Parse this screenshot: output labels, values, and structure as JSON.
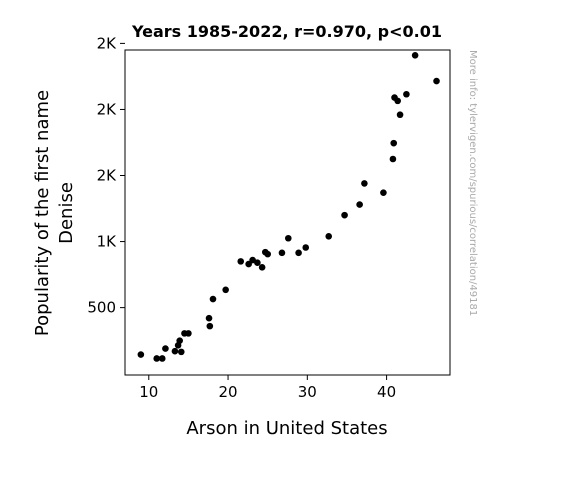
{
  "chart_data": {
    "type": "scatter",
    "title": "Years 1985-2022, r=0.970, p<0.01",
    "xlabel": "Arson in United States",
    "ylabel_lines": [
      "Popularity of the first name",
      "Denise"
    ],
    "side_note": "More info: tylervigen.com/spurious/correlation/49181",
    "xlim": [
      7,
      48
    ],
    "ylim": [
      -10,
      2450
    ],
    "x_ticks": [
      {
        "value": 10,
        "label": "10"
      },
      {
        "value": 20,
        "label": "20"
      },
      {
        "value": 30,
        "label": "30"
      },
      {
        "value": 40,
        "label": "40"
      }
    ],
    "y_ticks": [
      {
        "value": 500,
        "label": "500"
      },
      {
        "value": 1000,
        "label": "1K"
      },
      {
        "value": 1500,
        "label": "2K"
      },
      {
        "value": 2000,
        "label": "2K"
      },
      {
        "value": 2500,
        "label": "2K"
      }
    ],
    "points": [
      {
        "x": 9.0,
        "y": 145
      },
      {
        "x": 11.0,
        "y": 115
      },
      {
        "x": 11.7,
        "y": 115
      },
      {
        "x": 12.1,
        "y": 190
      },
      {
        "x": 13.3,
        "y": 170
      },
      {
        "x": 13.7,
        "y": 215
      },
      {
        "x": 13.9,
        "y": 250
      },
      {
        "x": 14.1,
        "y": 165
      },
      {
        "x": 14.5,
        "y": 305
      },
      {
        "x": 15.0,
        "y": 305
      },
      {
        "x": 17.6,
        "y": 420
      },
      {
        "x": 17.7,
        "y": 360
      },
      {
        "x": 18.1,
        "y": 565
      },
      {
        "x": 19.7,
        "y": 635
      },
      {
        "x": 21.6,
        "y": 850
      },
      {
        "x": 22.6,
        "y": 830
      },
      {
        "x": 23.1,
        "y": 860
      },
      {
        "x": 23.7,
        "y": 840
      },
      {
        "x": 24.3,
        "y": 805
      },
      {
        "x": 24.7,
        "y": 920
      },
      {
        "x": 25.0,
        "y": 905
      },
      {
        "x": 26.8,
        "y": 915
      },
      {
        "x": 27.6,
        "y": 1025
      },
      {
        "x": 28.9,
        "y": 915
      },
      {
        "x": 29.8,
        "y": 955
      },
      {
        "x": 32.7,
        "y": 1040
      },
      {
        "x": 34.7,
        "y": 1200
      },
      {
        "x": 36.6,
        "y": 1280
      },
      {
        "x": 37.2,
        "y": 1440
      },
      {
        "x": 39.6,
        "y": 1370
      },
      {
        "x": 40.8,
        "y": 1625
      },
      {
        "x": 40.9,
        "y": 1745
      },
      {
        "x": 41.0,
        "y": 2090
      },
      {
        "x": 41.4,
        "y": 2065
      },
      {
        "x": 41.7,
        "y": 1960
      },
      {
        "x": 42.5,
        "y": 2115
      },
      {
        "x": 43.6,
        "y": 2410
      },
      {
        "x": 46.3,
        "y": 2215
      }
    ],
    "marker_color": "#000000",
    "grid": false
  }
}
